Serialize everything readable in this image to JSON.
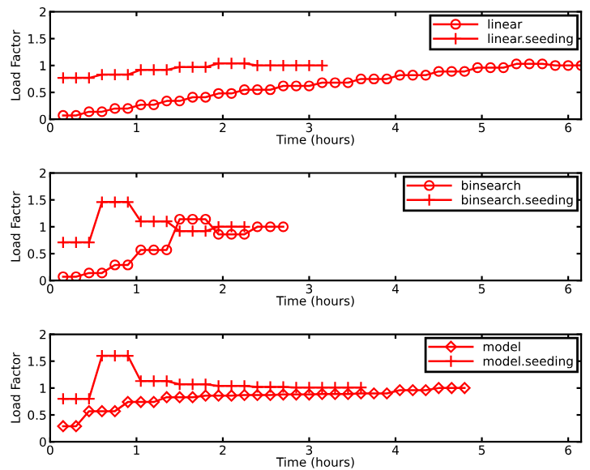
{
  "chart_data": [
    {
      "type": "line",
      "xlabel": "Time (hours)",
      "ylabel": "Load Factor",
      "xlim": [
        0,
        6.15
      ],
      "ylim": [
        0,
        2
      ],
      "xticks": [
        0,
        1,
        2,
        3,
        4,
        5,
        6
      ],
      "yticks": [
        0,
        0.5,
        1,
        1.5,
        2
      ],
      "legend": "top right",
      "series": [
        {
          "name": "linear",
          "color": "#ff0000",
          "marker": "circle",
          "x": [
            0.15,
            0.3,
            0.45,
            0.6,
            0.75,
            0.9,
            1.05,
            1.2,
            1.35,
            1.5,
            1.65,
            1.8,
            1.95,
            2.1,
            2.25,
            2.4,
            2.55,
            2.7,
            2.85,
            3.0,
            3.15,
            3.3,
            3.45,
            3.6,
            3.75,
            3.9,
            4.05,
            4.2,
            4.35,
            4.5,
            4.65,
            4.8,
            4.95,
            5.1,
            5.25,
            5.4,
            5.55,
            5.7,
            5.85,
            6.0,
            6.15
          ],
          "values": [
            0.07,
            0.07,
            0.14,
            0.14,
            0.2,
            0.2,
            0.27,
            0.27,
            0.34,
            0.34,
            0.41,
            0.41,
            0.48,
            0.48,
            0.55,
            0.55,
            0.55,
            0.62,
            0.62,
            0.62,
            0.68,
            0.68,
            0.68,
            0.75,
            0.75,
            0.75,
            0.82,
            0.82,
            0.82,
            0.89,
            0.89,
            0.89,
            0.96,
            0.96,
            0.96,
            1.03,
            1.03,
            1.03,
            1.0,
            1.0,
            1.0
          ]
        },
        {
          "name": "linear.seeding",
          "color": "#ff0000",
          "marker": "cross",
          "x": [
            0.15,
            0.3,
            0.45,
            0.6,
            0.75,
            0.9,
            1.05,
            1.2,
            1.35,
            1.5,
            1.65,
            1.8,
            1.95,
            2.1,
            2.25,
            2.4,
            2.55,
            2.7,
            2.85,
            3.0,
            3.15
          ],
          "values": [
            0.77,
            0.77,
            0.77,
            0.83,
            0.83,
            0.83,
            0.92,
            0.92,
            0.92,
            0.97,
            0.97,
            0.97,
            1.04,
            1.04,
            1.04,
            1.0,
            1.0,
            1.0,
            1.0,
            1.0,
            1.0
          ]
        }
      ]
    },
    {
      "type": "line",
      "xlabel": "Time (hours)",
      "ylabel": "Load Factor",
      "xlim": [
        0,
        6.15
      ],
      "ylim": [
        0,
        2
      ],
      "xticks": [
        0,
        1,
        2,
        3,
        4,
        5,
        6
      ],
      "yticks": [
        0,
        0.5,
        1,
        1.5,
        2
      ],
      "legend": "top right",
      "series": [
        {
          "name": "binsearch",
          "color": "#ff0000",
          "marker": "circle",
          "x": [
            0.15,
            0.3,
            0.45,
            0.6,
            0.75,
            0.9,
            1.05,
            1.2,
            1.35,
            1.5,
            1.65,
            1.8,
            1.95,
            2.1,
            2.25,
            2.4,
            2.55,
            2.7
          ],
          "values": [
            0.07,
            0.07,
            0.14,
            0.14,
            0.29,
            0.29,
            0.57,
            0.57,
            0.57,
            1.14,
            1.14,
            1.14,
            0.86,
            0.86,
            0.86,
            1.0,
            1.0,
            1.0
          ]
        },
        {
          "name": "binsearch.seeding",
          "color": "#ff0000",
          "marker": "cross",
          "x": [
            0.15,
            0.3,
            0.45,
            0.6,
            0.75,
            0.9,
            1.05,
            1.2,
            1.35,
            1.5,
            1.65,
            1.8,
            1.95,
            2.1,
            2.25
          ],
          "values": [
            0.71,
            0.71,
            0.71,
            1.46,
            1.46,
            1.46,
            1.1,
            1.1,
            1.1,
            0.92,
            0.92,
            0.92,
            1.0,
            1.0,
            1.0
          ]
        }
      ]
    },
    {
      "type": "line",
      "xlabel": "Time (hours)",
      "ylabel": "Load Factor",
      "xlim": [
        0,
        6.15
      ],
      "ylim": [
        0,
        2
      ],
      "xticks": [
        0,
        1,
        2,
        3,
        4,
        5,
        6
      ],
      "yticks": [
        0,
        0.5,
        1,
        1.5,
        2
      ],
      "legend": "top right",
      "series": [
        {
          "name": "model",
          "color": "#ff0000",
          "marker": "diamond",
          "x": [
            0.15,
            0.3,
            0.45,
            0.6,
            0.75,
            0.9,
            1.05,
            1.2,
            1.35,
            1.5,
            1.65,
            1.8,
            1.95,
            2.1,
            2.25,
            2.4,
            2.55,
            2.7,
            2.85,
            3.0,
            3.15,
            3.3,
            3.45,
            3.6,
            3.75,
            3.9,
            4.05,
            4.2,
            4.35,
            4.5,
            4.65,
            4.8
          ],
          "values": [
            0.29,
            0.29,
            0.57,
            0.57,
            0.57,
            0.74,
            0.74,
            0.74,
            0.83,
            0.83,
            0.83,
            0.86,
            0.86,
            0.86,
            0.87,
            0.87,
            0.87,
            0.88,
            0.88,
            0.88,
            0.89,
            0.89,
            0.89,
            0.9,
            0.9,
            0.9,
            0.96,
            0.96,
            0.96,
            1.0,
            1.0,
            1.0
          ]
        },
        {
          "name": "model.seeding",
          "color": "#ff0000",
          "marker": "cross",
          "x": [
            0.15,
            0.3,
            0.45,
            0.6,
            0.75,
            0.9,
            1.05,
            1.2,
            1.35,
            1.5,
            1.65,
            1.8,
            1.95,
            2.1,
            2.25,
            2.4,
            2.55,
            2.7,
            2.85,
            3.0,
            3.15,
            3.3,
            3.45,
            3.6
          ],
          "values": [
            0.8,
            0.8,
            0.8,
            1.6,
            1.6,
            1.6,
            1.13,
            1.13,
            1.13,
            1.07,
            1.07,
            1.07,
            1.04,
            1.04,
            1.04,
            1.02,
            1.02,
            1.02,
            1.01,
            1.01,
            1.01,
            1.01,
            1.01,
            1.01
          ]
        }
      ]
    }
  ]
}
